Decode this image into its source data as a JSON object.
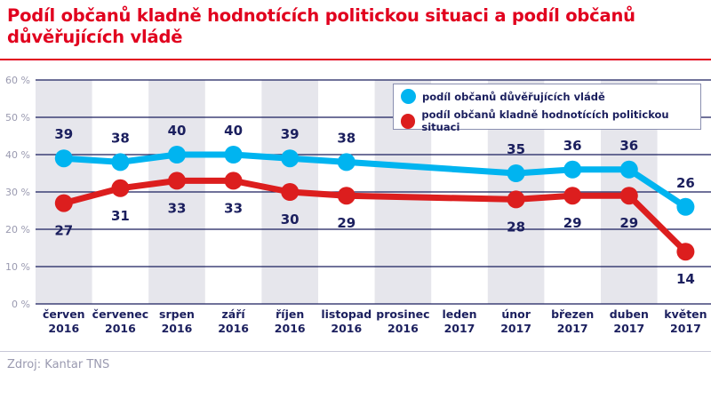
{
  "title": "Podíl občanů kladně hodnotících politickou situaci a podíl občanů důvěřujících vládě",
  "source": "Zdroj: Kantar TNS",
  "chart_data": {
    "type": "line",
    "title": "Podíl občanů kladně hodnotících politickou situaci a podíl občanů důvěřujících vládě",
    "categories": [
      [
        "červen",
        "2016"
      ],
      [
        "červenec",
        "2016"
      ],
      [
        "srpen",
        "2016"
      ],
      [
        "září",
        "2016"
      ],
      [
        "říjen",
        "2016"
      ],
      [
        "listopad",
        "2016"
      ],
      [
        "prosinec",
        "2016"
      ],
      [
        "leden",
        "2017"
      ],
      [
        "únor",
        "2017"
      ],
      [
        "březen",
        "2017"
      ],
      [
        "duben",
        "2017"
      ],
      [
        "květen",
        "2017"
      ]
    ],
    "y_ticks": [
      "0 %",
      "10 %",
      "20 %",
      "30 %",
      "40 %",
      "50 %",
      "60 %"
    ],
    "ylim": [
      0,
      60
    ],
    "grid": true,
    "legend_position": "top-right",
    "series": [
      {
        "name": "podíl občanů důvěřujících vládě",
        "color": "#00b4f0",
        "values": [
          39,
          38,
          40,
          40,
          39,
          38,
          null,
          null,
          35,
          36,
          36,
          26
        ]
      },
      {
        "name": "podíl občanů kladně hodnotících politickou situaci",
        "color": "#dc1e1e",
        "values": [
          27,
          31,
          33,
          33,
          30,
          29,
          null,
          null,
          28,
          29,
          29,
          14
        ]
      }
    ],
    "colors": {
      "grid": "#1b1f5e",
      "band": "#e6e6ec",
      "label": "#1b1f5e"
    }
  }
}
